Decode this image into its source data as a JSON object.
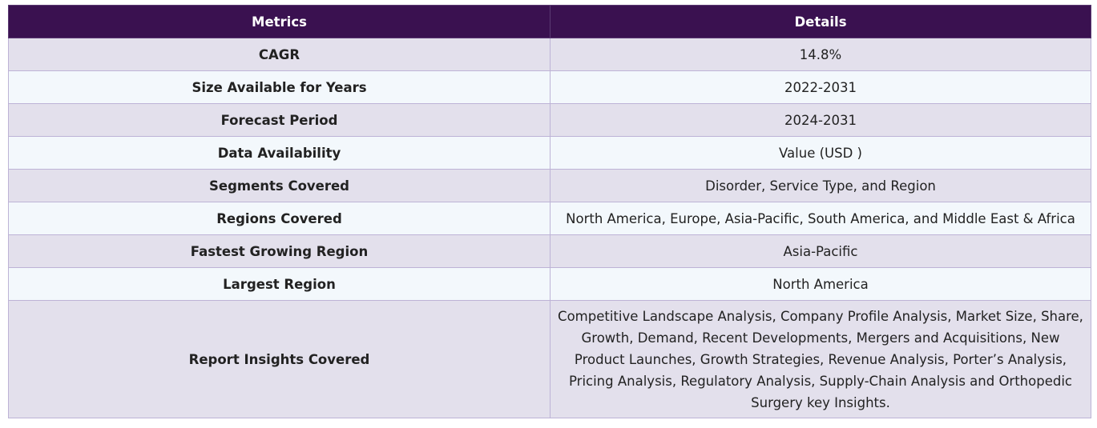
{
  "table": {
    "header": [
      "Metrics",
      "Details"
    ],
    "rows": [
      [
        "CAGR",
        "14.8%"
      ],
      [
        "Size Available for Years",
        "2022-2031"
      ],
      [
        "Forecast Period",
        "2024-2031"
      ],
      [
        "Data Availability",
        "Value (USD )"
      ],
      [
        "Segments Covered",
        "Disorder, Service Type, and Region"
      ],
      [
        "Regions Covered",
        "North America, Europe, Asia-Pacific, South America, and Middle East & Africa"
      ],
      [
        "Fastest Growing Region",
        "Asia-Pacific"
      ],
      [
        "Largest Region",
        "North America"
      ],
      [
        "Report Insights Covered",
        "Competitive Landscape Analysis, Company Profile Analysis, Market Size, Share, Growth, Demand, Recent Developments, Mergers and Acquisitions, New Product Launches, Growth Strategies, Revenue Analysis, Porter’s Analysis, Pricing Analysis, Regulatory Analysis, Supply-Chain Analysis and Orthopedic Surgery key Insights."
      ]
    ]
  }
}
